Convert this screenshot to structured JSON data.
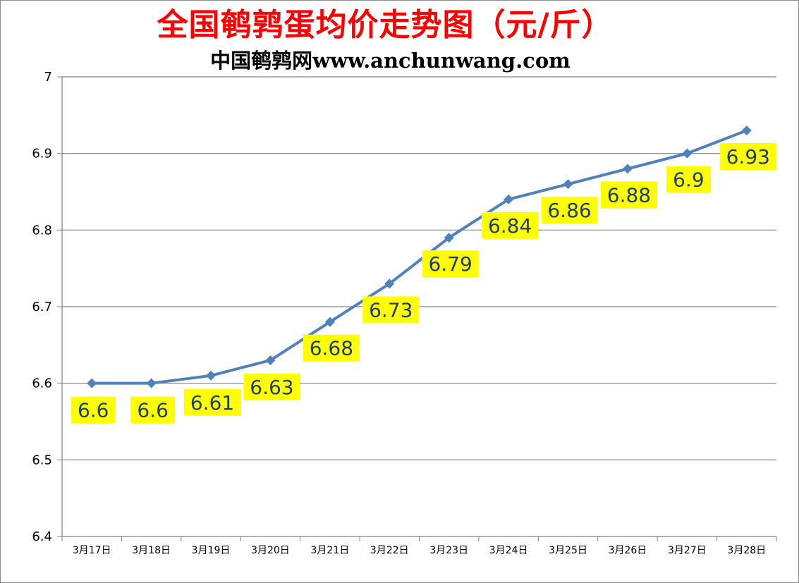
{
  "chart_data": {
    "type": "line",
    "title": "全国鹌鹑蛋均价走势图（元/斤）",
    "subtitle": "中国鹌鹑网www.anchunwang.com",
    "categories": [
      "3月17日",
      "3月18日",
      "3月19日",
      "3月20日",
      "3月21日",
      "3月22日",
      "3月23日",
      "3月24日",
      "3月25日",
      "3月26日",
      "3月27日",
      "3月28日"
    ],
    "series": [
      {
        "name": "均价",
        "values": [
          6.6,
          6.6,
          6.61,
          6.63,
          6.68,
          6.73,
          6.79,
          6.84,
          6.86,
          6.88,
          6.9,
          6.93
        ]
      }
    ],
    "data_labels": [
      "6.6",
      "6.6",
      "6.61",
      "6.63",
      "6.68",
      "6.73",
      "6.79",
      "6.84",
      "6.86",
      "6.88",
      "6.9",
      "6.93"
    ],
    "ytick_labels": [
      "6.4",
      "6.5",
      "6.6",
      "6.7",
      "6.8",
      "6.9",
      "7"
    ],
    "ylim": [
      6.4,
      7.0
    ],
    "ystep": 0.1,
    "grid": true,
    "xlabel": "",
    "ylabel": "",
    "colors": {
      "line": "#4f81bd",
      "title": "#ff0000",
      "label_bg": "#ffff00",
      "label_text": "#1f3d6e",
      "grid": "#808080"
    }
  }
}
